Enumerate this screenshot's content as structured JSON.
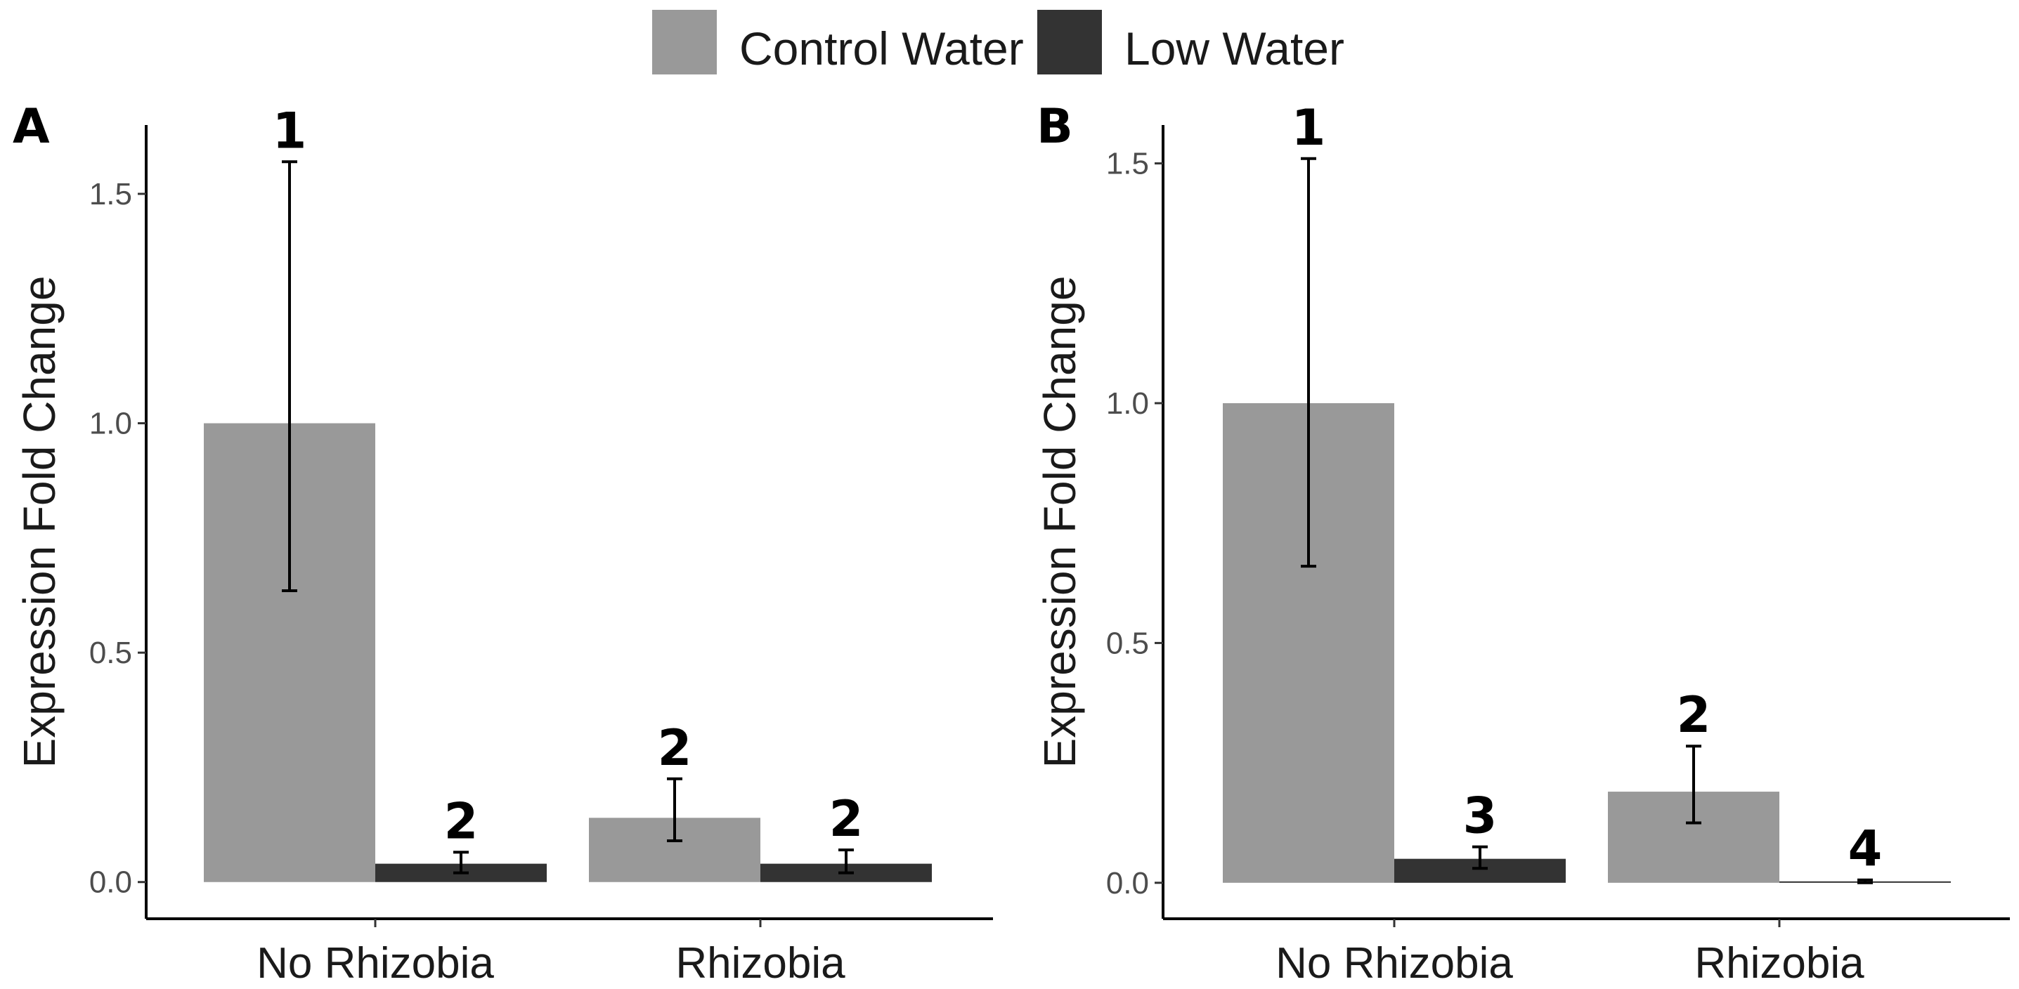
{
  "legend": {
    "items": [
      {
        "label": "Control Water",
        "color": "#999999"
      },
      {
        "label": "Low Water",
        "color": "#333333"
      }
    ]
  },
  "chart_data": [
    {
      "type": "bar",
      "panel": "A",
      "ylabel": "Expression Fold Change",
      "categories": [
        "No Rhizobia",
        "Rhizobia"
      ],
      "ylim": [
        -0.08,
        1.65
      ],
      "yticks": [
        0.0,
        0.5,
        1.0,
        1.5
      ],
      "ytick_labels": [
        "0.0",
        "0.5",
        "1.0",
        "1.5"
      ],
      "grid": false,
      "legend_position": "top",
      "series": [
        {
          "name": "Control Water",
          "color": "#999999",
          "values": [
            1.0,
            0.14
          ],
          "err_low": [
            0.635,
            0.09
          ],
          "err_high": [
            1.57,
            0.225
          ],
          "labels": [
            "1",
            "2"
          ]
        },
        {
          "name": "Low Water",
          "color": "#333333",
          "values": [
            0.04,
            0.04
          ],
          "err_low": [
            0.02,
            0.02
          ],
          "err_high": [
            0.065,
            0.07
          ],
          "labels": [
            "2",
            "2"
          ]
        }
      ]
    },
    {
      "type": "bar",
      "panel": "B",
      "ylabel": "Expression Fold Change",
      "categories": [
        "No Rhizobia",
        "Rhizobia"
      ],
      "ylim": [
        -0.075,
        1.58
      ],
      "yticks": [
        0.0,
        0.5,
        1.0,
        1.5
      ],
      "ytick_labels": [
        "0.0",
        "0.5",
        "1.0",
        "1.5"
      ],
      "grid": false,
      "legend_position": "top",
      "series": [
        {
          "name": "Control Water",
          "color": "#999999",
          "values": [
            1.0,
            0.19
          ],
          "err_low": [
            0.66,
            0.125
          ],
          "err_high": [
            1.51,
            0.285
          ],
          "labels": [
            "1",
            "2"
          ]
        },
        {
          "name": "Low Water",
          "color": "#333333",
          "values": [
            0.05,
            0.003
          ],
          "err_low": [
            0.03,
            0.0
          ],
          "err_high": [
            0.075,
            0.006
          ],
          "labels": [
            "3",
            "4"
          ]
        }
      ]
    }
  ]
}
